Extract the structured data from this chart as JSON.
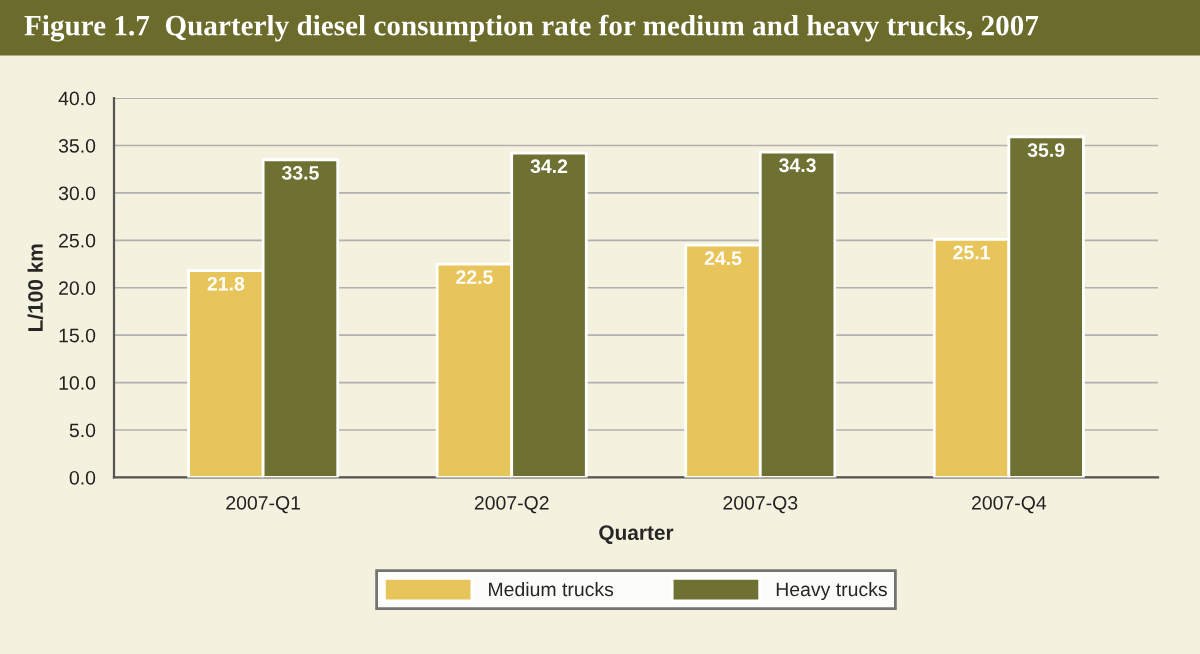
{
  "chart_data": {
    "type": "bar",
    "title": "Figure 1.7  Quarterly diesel consumption rate for medium and heavy trucks, 2007",
    "xlabel": "Quarter",
    "ylabel": "L/100 km",
    "categories": [
      "2007-Q1",
      "2007-Q2",
      "2007-Q3",
      "2007-Q4"
    ],
    "series": [
      {
        "name": "Medium trucks",
        "color": "#e8c55a",
        "values": [
          21.8,
          22.5,
          24.5,
          25.1
        ]
      },
      {
        "name": "Heavy trucks",
        "color": "#6e7131",
        "values": [
          33.5,
          34.2,
          34.3,
          35.9
        ]
      }
    ],
    "ylim": [
      0,
      40
    ],
    "yticks": [
      {
        "value": 0,
        "label": "0.0"
      },
      {
        "value": 5,
        "label": "5.0"
      },
      {
        "value": 10,
        "label": "10.0"
      },
      {
        "value": 15,
        "label": "15.0"
      },
      {
        "value": 20,
        "label": "20.0"
      },
      {
        "value": 25,
        "label": "25.0"
      },
      {
        "value": 30,
        "label": "30.0"
      },
      {
        "value": 35,
        "label": "35.0"
      },
      {
        "value": 40,
        "label": "40.0"
      }
    ],
    "grid": "y",
    "legend": "bottom",
    "data_labels": true
  }
}
